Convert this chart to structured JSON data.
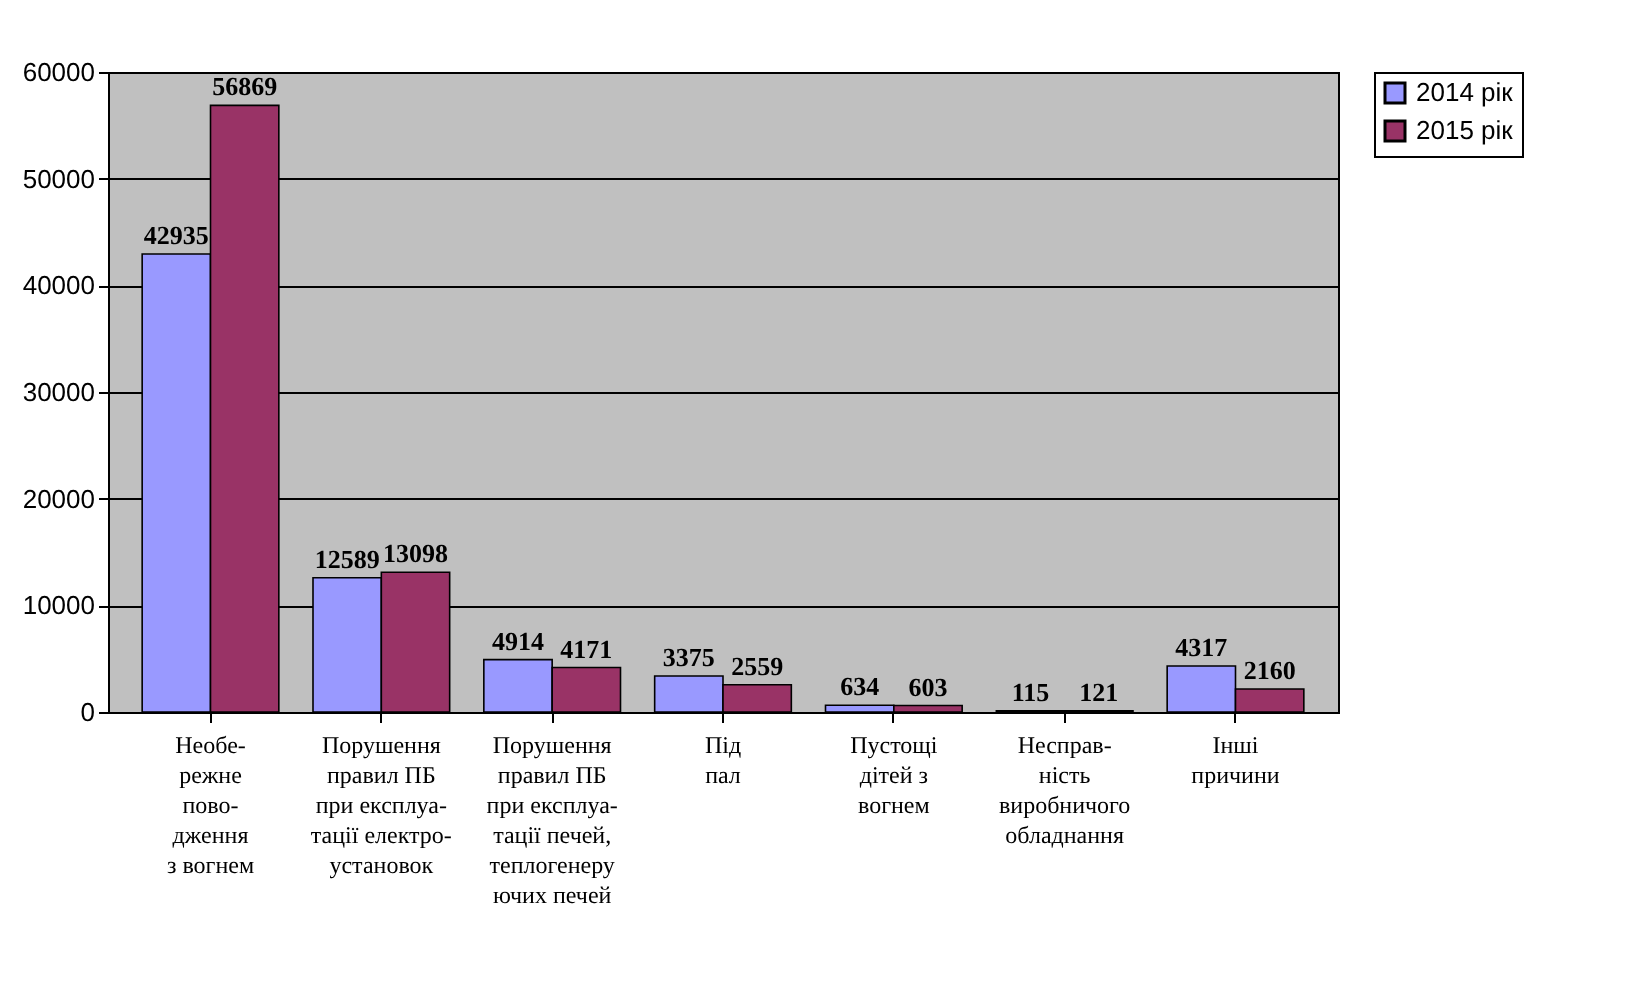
{
  "chart_data": {
    "type": "bar",
    "categories": [
      "Необе-\nрежне\nпово-\nдження\nз вогнем",
      "Порушення\nправил ПБ\nпри експлуа-\nтації електро-\nустановок",
      "Порушення\nправил ПБ\nпри експлуа-\nтації печей,\nтеплогенеру\nючих печей",
      "Під\nпал",
      "Пустощі\nдітей з\nвогнем",
      "Несправ-\nність\nвиробничого\nобладнання",
      "Інші\nпричини"
    ],
    "series": [
      {
        "name": "2014 рік",
        "color": "#9999ff",
        "values": [
          42935,
          12589,
          4914,
          3375,
          634,
          115,
          4317
        ]
      },
      {
        "name": "2015 рік",
        "color": "#993366",
        "values": [
          56869,
          13098,
          4171,
          2559,
          603,
          121,
          2160
        ]
      }
    ],
    "ylim": [
      0,
      60000
    ],
    "yticks": [
      0,
      10000,
      20000,
      30000,
      40000,
      50000,
      60000
    ],
    "grid": "y",
    "legend": "right",
    "data_labels": true
  }
}
